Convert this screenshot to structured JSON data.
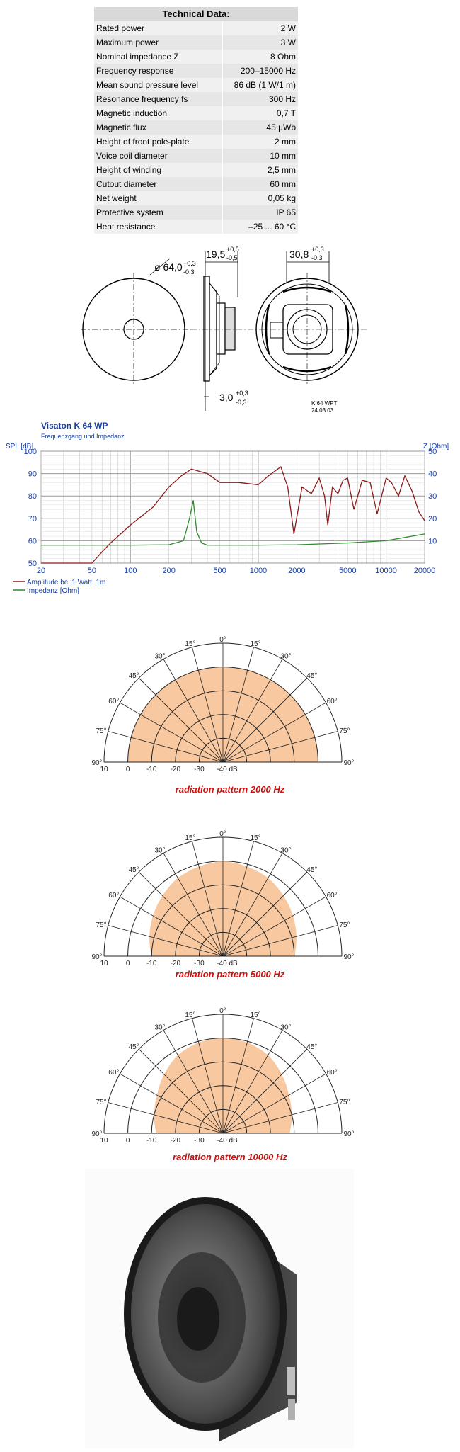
{
  "tech": {
    "title": "Technical Data:",
    "rows": [
      {
        "label": "Rated power",
        "value": "2 W"
      },
      {
        "label": "Maximum power",
        "value": "3 W"
      },
      {
        "label": "Nominal impedance Z",
        "value": "8 Ohm"
      },
      {
        "label": "Frequency response",
        "value": "200–15000 Hz"
      },
      {
        "label": "Mean sound pressure level",
        "value": "86 dB (1 W/1 m)"
      },
      {
        "label": "Resonance frequency fs",
        "value": "300 Hz"
      },
      {
        "label": "Magnetic induction",
        "value": "0,7 T"
      },
      {
        "label": "Magnetic flux",
        "value": "45 µWb"
      },
      {
        "label": "Height of front pole-plate",
        "value": "2 mm"
      },
      {
        "label": "Voice coil diameter",
        "value": "10 mm"
      },
      {
        "label": "Height of winding",
        "value": "2,5 mm"
      },
      {
        "label": "Cutout diameter",
        "value": "60 mm"
      },
      {
        "label": "Net weight",
        "value": "0,05 kg"
      },
      {
        "label": "Protective system",
        "value": "IP 65"
      },
      {
        "label": "Heat resistance",
        "value": "–25 ... 60 °C"
      }
    ]
  },
  "drawing": {
    "dim_diameter": "ø 64,0",
    "dim_diameter_tol_plus": "+0,3",
    "dim_diameter_tol_minus": "-0,3",
    "dim_depth": "19,5",
    "dim_depth_tol_plus": "+0,5",
    "dim_depth_tol_minus": "-0,5",
    "dim_back": "30,8",
    "dim_back_tol_plus": "+0,3",
    "dim_back_tol_minus": "-0,3",
    "dim_flange": "3,0",
    "dim_flange_tol_plus": "+0,3",
    "dim_flange_tol_minus": "-0,3",
    "part_id": "K 64 WPT",
    "part_date": "24.03.03"
  },
  "freq_graph": {
    "title": "Visaton K 64 WP",
    "subtitle": "Frequenzgang und Impedanz"
  },
  "chart_data": [
    {
      "type": "line",
      "title": "Visaton K 64 WP",
      "subtitle": "Frequenzgang und Impedanz",
      "xscale": "log",
      "xlim": [
        20,
        20000
      ],
      "x_ticks": [
        "20",
        "50",
        "100",
        "200",
        "500",
        "1000",
        "2000",
        "5000",
        "10000",
        "20000"
      ],
      "ylabel": "SPL [dB]",
      "ylim": [
        50,
        100
      ],
      "y_ticks": [
        "50",
        "60",
        "70",
        "80",
        "90",
        "100"
      ],
      "y2label": "Z [Ohm]",
      "y2lim": [
        0,
        50
      ],
      "y2_ticks": [
        "10",
        "20",
        "30",
        "40",
        "50"
      ],
      "grid": true,
      "legend_position": "bottom-left",
      "series": [
        {
          "name": "Amplitude bei 1 Watt, 1m",
          "color": "#8b1a1a",
          "axis": "left",
          "x": [
            20,
            40,
            50,
            60,
            70,
            100,
            150,
            200,
            250,
            300,
            400,
            500,
            700,
            1000,
            1200,
            1500,
            1700,
            1900,
            2200,
            2600,
            3000,
            3300,
            3500,
            3800,
            4200,
            4600,
            5000,
            5600,
            6500,
            7500,
            8500,
            10000,
            11000,
            12500,
            14000,
            16000,
            18000,
            20000
          ],
          "y": [
            50,
            50,
            50,
            55,
            59,
            67,
            75,
            84,
            89,
            92,
            90,
            86,
            86,
            85,
            89,
            93,
            84,
            63,
            84,
            81,
            88,
            80,
            67,
            84,
            81,
            87,
            88,
            74,
            87,
            86,
            72,
            88,
            86,
            80,
            89,
            82,
            73,
            69
          ]
        },
        {
          "name": "Impedanz [Ohm]",
          "color": "#2e8b2e",
          "axis": "right",
          "x": [
            20,
            50,
            100,
            200,
            260,
            290,
            310,
            330,
            360,
            400,
            1000,
            2000,
            5000,
            10000,
            20000
          ],
          "y": [
            8,
            8,
            8,
            8.2,
            10,
            20,
            28,
            14,
            9,
            8,
            8,
            8.2,
            9,
            10,
            13
          ]
        }
      ]
    },
    {
      "type": "polar",
      "title": "radiation pattern 2000 Hz",
      "angle_labels": [
        "0°",
        "15°",
        "30°",
        "45°",
        "60°",
        "75°",
        "90°"
      ],
      "radial_labels": [
        "10",
        "0",
        "-10",
        "-20",
        "-30",
        "-40 dB"
      ],
      "rlim_db": [
        -40,
        10
      ],
      "angles_deg": [
        0,
        15,
        30,
        45,
        60,
        75,
        90
      ],
      "levels_db": [
        0,
        0,
        0,
        0,
        0,
        0,
        0
      ]
    },
    {
      "type": "polar",
      "title": "radiation pattern 5000 Hz",
      "angle_labels": [
        "0°",
        "15°",
        "30°",
        "45°",
        "60°",
        "75°",
        "90°"
      ],
      "radial_labels": [
        "10",
        "0",
        "-10",
        "-20",
        "-30",
        "-40 dB"
      ],
      "rlim_db": [
        -40,
        10
      ],
      "angles_deg": [
        0,
        15,
        30,
        45,
        60,
        75,
        90
      ],
      "levels_db": [
        0,
        -1,
        -2,
        -4,
        -6,
        -8,
        -10
      ]
    },
    {
      "type": "polar",
      "title": "radiation pattern 10000 Hz",
      "angle_labels": [
        "0°",
        "15°",
        "30°",
        "45°",
        "60°",
        "75°",
        "90°"
      ],
      "radial_labels": [
        "10",
        "0",
        "-10",
        "-20",
        "-30",
        "-40 dB"
      ],
      "rlim_db": [
        -40,
        10
      ],
      "angles_deg": [
        0,
        15,
        30,
        45,
        60,
        75,
        90
      ],
      "levels_db": [
        0,
        -0.5,
        -2,
        -5,
        -8,
        -10,
        -12
      ]
    }
  ],
  "colors": {
    "polar_fill": "#f8c9a0",
    "graph_text": "#1a3fa0",
    "caption_red": "#cc1111"
  }
}
